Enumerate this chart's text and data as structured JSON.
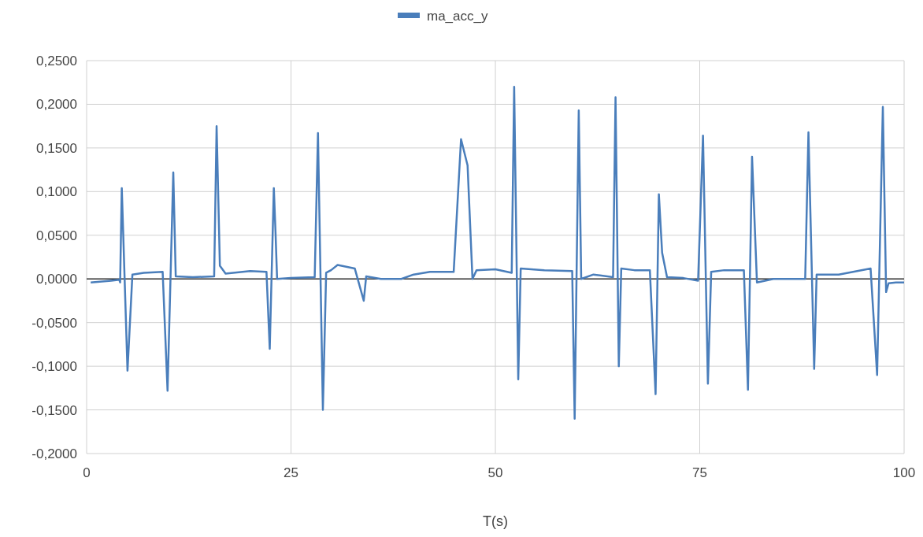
{
  "chart_data": {
    "type": "line",
    "xlabel": "T(s)",
    "legend": "top",
    "grid": true,
    "marker": "none",
    "line_style": "solid",
    "xlim": [
      0,
      100
    ],
    "xticks": [
      0,
      25,
      50,
      75,
      100
    ],
    "ylim": [
      -0.2,
      0.25
    ],
    "yticks": [
      {
        "value": -0.2,
        "label": "-0,2000"
      },
      {
        "value": -0.15,
        "label": "-0,1500"
      },
      {
        "value": -0.1,
        "label": "-0,1000"
      },
      {
        "value": -0.05,
        "label": "-0,0500"
      },
      {
        "value": 0,
        "label": "0,0000"
      },
      {
        "value": 0.05,
        "label": "0,0500"
      },
      {
        "value": 0.1,
        "label": "0,1000"
      },
      {
        "value": 0.15,
        "label": "0,1500"
      },
      {
        "value": 0.2,
        "label": "0,2000"
      },
      {
        "value": 0.25,
        "label": "0,2500"
      }
    ],
    "series": [
      {
        "name": "ma_acc_y",
        "color": "#4a7ebb",
        "x": [
          0.5,
          3,
          4,
          4.1,
          4.3,
          5.0,
          5.6,
          7,
          9.3,
          9.9,
          10.6,
          10.9,
          13,
          15.6,
          15.9,
          16.3,
          17,
          20,
          22.0,
          22.4,
          22.9,
          23.1,
          23.3,
          25,
          27.9,
          28.3,
          28.9,
          29.3,
          29.9,
          30.7,
          32.8,
          33.9,
          34.2,
          36,
          38.5,
          40,
          42,
          44.9,
          45.8,
          46.6,
          47.2,
          47.7,
          50,
          52.0,
          52.3,
          52.8,
          53.1,
          56,
          59.4,
          59.7,
          60.2,
          60.5,
          62,
          64.4,
          64.7,
          65.1,
          65.4,
          67,
          68.9,
          69.6,
          70.0,
          70.4,
          71.0,
          73,
          74.8,
          75.4,
          76.0,
          76.4,
          78,
          80.4,
          80.9,
          81.4,
          82.0,
          84,
          87.9,
          88.3,
          89.0,
          89.3,
          92,
          95.9,
          96.7,
          97.4,
          97.8,
          98.1,
          99,
          100
        ],
        "values": [
          -0.004,
          -0.002,
          -0.001,
          -0.004,
          0.104,
          -0.105,
          0.005,
          0.007,
          0.008,
          -0.128,
          0.122,
          0.003,
          0.002,
          0.003,
          0.175,
          0.015,
          0.006,
          0.009,
          0.008,
          -0.08,
          0.104,
          0.055,
          0.0,
          0.001,
          0.002,
          0.167,
          -0.15,
          0.007,
          0.01,
          0.016,
          0.012,
          -0.025,
          0.003,
          0.0,
          0.0,
          0.005,
          0.008,
          0.008,
          0.16,
          0.13,
          0.0,
          0.01,
          0.011,
          0.007,
          0.22,
          -0.115,
          0.012,
          0.01,
          0.009,
          -0.16,
          0.193,
          0.0,
          0.005,
          0.002,
          0.208,
          -0.1,
          0.012,
          0.01,
          0.01,
          -0.132,
          0.097,
          0.03,
          0.002,
          0.001,
          -0.002,
          0.164,
          -0.12,
          0.008,
          0.01,
          0.01,
          -0.127,
          0.14,
          -0.004,
          0.0,
          0.0,
          0.168,
          -0.103,
          0.005,
          0.005,
          0.012,
          -0.11,
          0.197,
          -0.015,
          -0.005,
          -0.004,
          -0.004
        ]
      }
    ]
  }
}
